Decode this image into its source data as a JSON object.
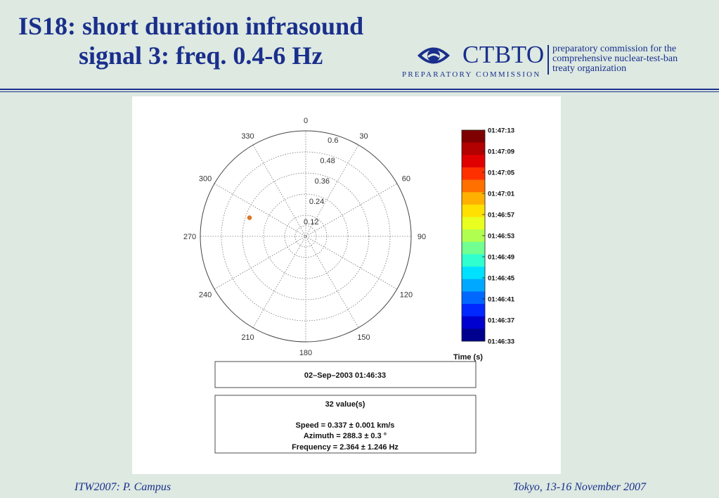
{
  "slide": {
    "title_line1": "IS18: short duration infrasound",
    "title_line2": "signal 3: freq. 0.4-6 Hz",
    "footer_left": "ITW2007: P. Campus",
    "footer_right": "Tokyo, 13-16 November 2007"
  },
  "logo": {
    "name": "CTBTO",
    "subtitle": "PREPARATORY COMMISSION",
    "desc_line1": "preparatory commission for the",
    "desc_line2": "comprehensive nuclear-test-ban",
    "desc_line3": "treaty organization",
    "icon": "ctbto-eye-icon",
    "color": "#1a2f8c"
  },
  "chart_data": {
    "type": "scatter",
    "projection": "polar",
    "angle_ticks": [
      "0",
      "30",
      "60",
      "90",
      "120",
      "150",
      "180",
      "210",
      "240",
      "270",
      "300",
      "330"
    ],
    "radial_ticks": [
      "0.12",
      "0.24",
      "0.36",
      "0.48",
      "0.6"
    ],
    "radial_max": 0.6,
    "grid": true,
    "points": [
      {
        "azimuth": 288.3,
        "slowness": 0.337,
        "color": "#e07820"
      }
    ],
    "colorbar": {
      "label": "Time (s)",
      "ticks": [
        "01:47:13",
        "01:47:09",
        "01:47:05",
        "01:47:01",
        "01:46:57",
        "01:46:53",
        "01:46:49",
        "01:46:45",
        "01:46:41",
        "01:46:37",
        "01:46:33"
      ]
    },
    "date_box": "02–Sep–2003 01:46:33",
    "info": {
      "count": "32 value(s)",
      "speed": "Speed = 0.337 ± 0.001 km/s",
      "azimuth": "Azimuth = 288.3 ± 0.3 °",
      "frequency": "Frequency = 2.364 ± 1.246 Hz"
    }
  }
}
